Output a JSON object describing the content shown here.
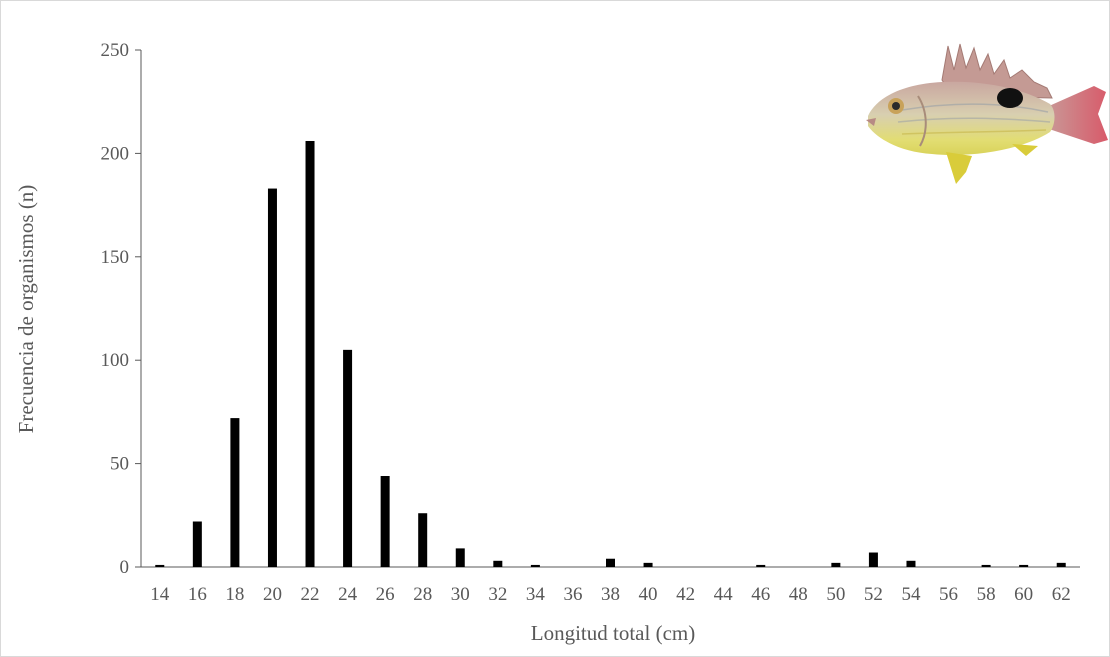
{
  "chart_data": {
    "type": "bar",
    "xlabel": "Longitud total (cm)",
    "ylabel": "Frecuencia de organismos (n)",
    "categories": [
      "14",
      "16",
      "18",
      "20",
      "22",
      "24",
      "26",
      "28",
      "30",
      "32",
      "34",
      "36",
      "38",
      "40",
      "42",
      "44",
      "46",
      "48",
      "50",
      "52",
      "54",
      "56",
      "58",
      "60",
      "62"
    ],
    "values": [
      1,
      22,
      72,
      183,
      206,
      105,
      44,
      26,
      9,
      3,
      1,
      0,
      4,
      2,
      0,
      0,
      1,
      0,
      2,
      7,
      3,
      0,
      1,
      1,
      2
    ],
    "ylim": [
      0,
      250
    ],
    "yticks": [
      0,
      50,
      100,
      150,
      200,
      250
    ],
    "grid": false,
    "legend": "none",
    "colors": {
      "bar": "#000000",
      "axis": "#595959",
      "text": "#595959"
    }
  },
  "decoration": {
    "icon": "fish-illustration-icon"
  }
}
